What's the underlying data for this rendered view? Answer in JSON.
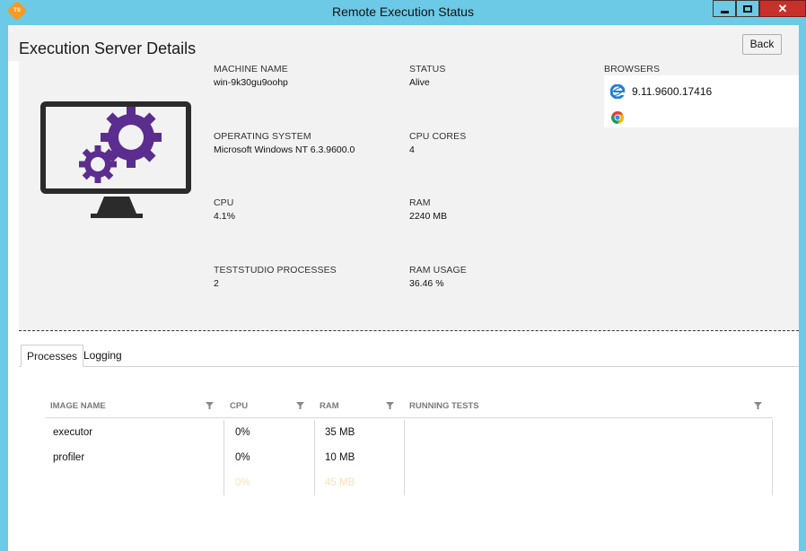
{
  "window": {
    "title": "Remote Execution Status",
    "icon_text": "TS",
    "close_glyph": "✕"
  },
  "page": {
    "title": "Execution Server Details",
    "back_label": "Back"
  },
  "details": {
    "machine_name": {
      "label": "MACHINE NAME",
      "value": "win-9k30gu9oohp"
    },
    "status": {
      "label": "STATUS",
      "value": "Alive"
    },
    "operating_system": {
      "label": "OPERATING SYSTEM",
      "value": "Microsoft Windows NT 6.3.9600.0"
    },
    "cpu_cores": {
      "label": "CPU CORES",
      "value": "4"
    },
    "cpu": {
      "label": "CPU",
      "value": "4.1%"
    },
    "ram": {
      "label": "RAM",
      "value": "2240 MB"
    },
    "teststudio_processes": {
      "label": "TESTSTUDIO PROCESSES",
      "value": "2"
    },
    "ram_usage": {
      "label": "RAM USAGE",
      "value": "36.46 %"
    }
  },
  "browsers": {
    "label": "BROWSERS",
    "items": [
      {
        "icon": "internet-explorer-icon",
        "version": "9.11.9600.17416"
      },
      {
        "icon": "chrome-icon",
        "version": ""
      }
    ]
  },
  "tabs": [
    {
      "label": "Processes",
      "active": true
    },
    {
      "label": "Logging",
      "active": false
    }
  ],
  "processes_table": {
    "columns": [
      "IMAGE NAME",
      "CPU",
      "RAM",
      "RUNNING TESTS"
    ],
    "rows": [
      {
        "image_name": "executor",
        "cpu": "0%",
        "ram": "35 MB",
        "running_tests": ""
      },
      {
        "image_name": "profiler",
        "cpu": "0%",
        "ram": "10 MB",
        "running_tests": ""
      },
      {
        "image_name": "",
        "cpu": "0%",
        "ram": "45 MB",
        "running_tests": ""
      }
    ]
  },
  "colors": {
    "titlebar": "#6ccae6",
    "gear_purple": "#5b2d8e",
    "monitor_dark": "#2b2b2b",
    "close_red": "#c7312b"
  }
}
